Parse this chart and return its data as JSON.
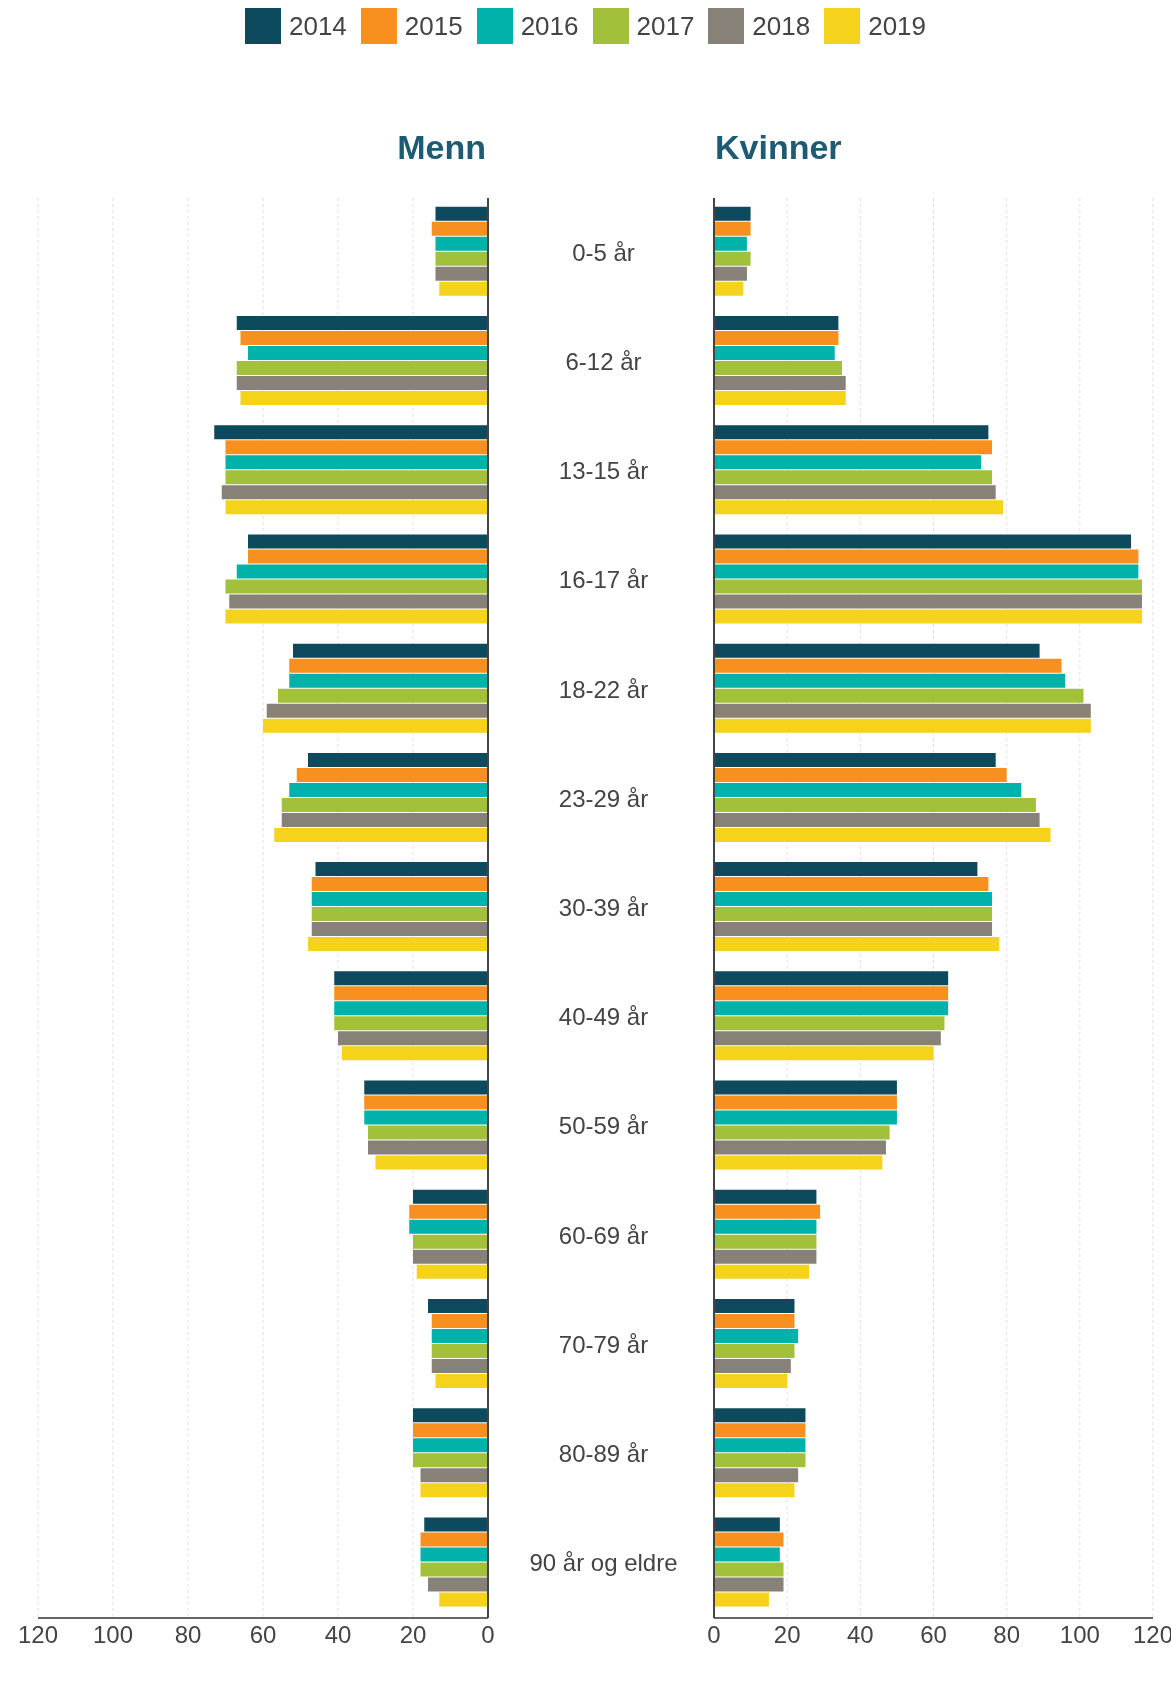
{
  "chart_data": [
    {
      "type": "bar",
      "orientation": "horizontal",
      "title": "Menn",
      "categories": [
        "0-5 år",
        "6-12 år",
        "13-15 år",
        "16-17 år",
        "18-22 år",
        "23-29 år",
        "30-39 år",
        "40-49 år",
        "50-59 år",
        "60-69 år",
        "70-79 år",
        "80-89 år",
        "90 år og eldre"
      ],
      "xlim": [
        120,
        0
      ],
      "xticks": [
        120,
        100,
        80,
        60,
        40,
        20,
        0
      ],
      "grid": "x",
      "legend": "top",
      "series": [
        {
          "name": "2014",
          "color": "#0d4a5e",
          "values": [
            14,
            67,
            73,
            64,
            52,
            48,
            46,
            41,
            33,
            20,
            16,
            20,
            17
          ]
        },
        {
          "name": "2015",
          "color": "#f7901e",
          "values": [
            15,
            66,
            70,
            64,
            53,
            51,
            47,
            41,
            33,
            21,
            15,
            20,
            18
          ]
        },
        {
          "name": "2016",
          "color": "#00b2a9",
          "values": [
            14,
            64,
            70,
            67,
            53,
            53,
            47,
            41,
            33,
            21,
            15,
            20,
            18
          ]
        },
        {
          "name": "2017",
          "color": "#a2c03a",
          "values": [
            14,
            67,
            70,
            70,
            56,
            55,
            47,
            41,
            32,
            20,
            15,
            20,
            18
          ]
        },
        {
          "name": "2018",
          "color": "#878177",
          "values": [
            14,
            67,
            71,
            69,
            59,
            55,
            47,
            40,
            32,
            20,
            15,
            18,
            16
          ]
        },
        {
          "name": "2019",
          "color": "#f5d21c",
          "values": [
            13,
            66,
            70,
            70,
            60,
            57,
            48,
            39,
            30,
            19,
            14,
            18,
            13
          ]
        }
      ]
    },
    {
      "type": "bar",
      "orientation": "horizontal",
      "title": "Kvinner",
      "categories": [
        null,
        null,
        null,
        null,
        null,
        null,
        null,
        null,
        null,
        null,
        null,
        null,
        null
      ],
      "xlim": [
        0,
        120
      ],
      "xticks": [
        0,
        20,
        40,
        60,
        80,
        100,
        120
      ],
      "grid": "x",
      "legend": "top",
      "tick_labels": "x",
      "series": [
        {
          "name": "2014",
          "color": "#0d4a5e",
          "values": [
            10,
            34,
            75,
            114,
            89,
            77,
            72,
            64,
            50,
            28,
            22,
            25,
            18
          ]
        },
        {
          "name": "2015",
          "color": "#f7901e",
          "values": [
            10,
            34,
            76,
            116,
            95,
            80,
            75,
            64,
            50,
            29,
            22,
            25,
            19
          ]
        },
        {
          "name": "2016",
          "color": "#00b2a9",
          "values": [
            9,
            33,
            73,
            116,
            96,
            84,
            76,
            64,
            50,
            28,
            23,
            25,
            18
          ]
        },
        {
          "name": "2017",
          "color": "#a2c03a",
          "values": [
            10,
            35,
            76,
            117,
            101,
            88,
            76,
            63,
            48,
            28,
            22,
            25,
            19
          ]
        },
        {
          "name": "2018",
          "color": "#878177",
          "values": [
            9,
            36,
            77,
            117,
            103,
            89,
            76,
            62,
            47,
            28,
            21,
            23,
            19
          ]
        },
        {
          "name": "2019",
          "color": "#f5d21c",
          "values": [
            8,
            36,
            79,
            117,
            103,
            92,
            78,
            60,
            46,
            26,
            20,
            22,
            15
          ]
        }
      ]
    }
  ]
}
